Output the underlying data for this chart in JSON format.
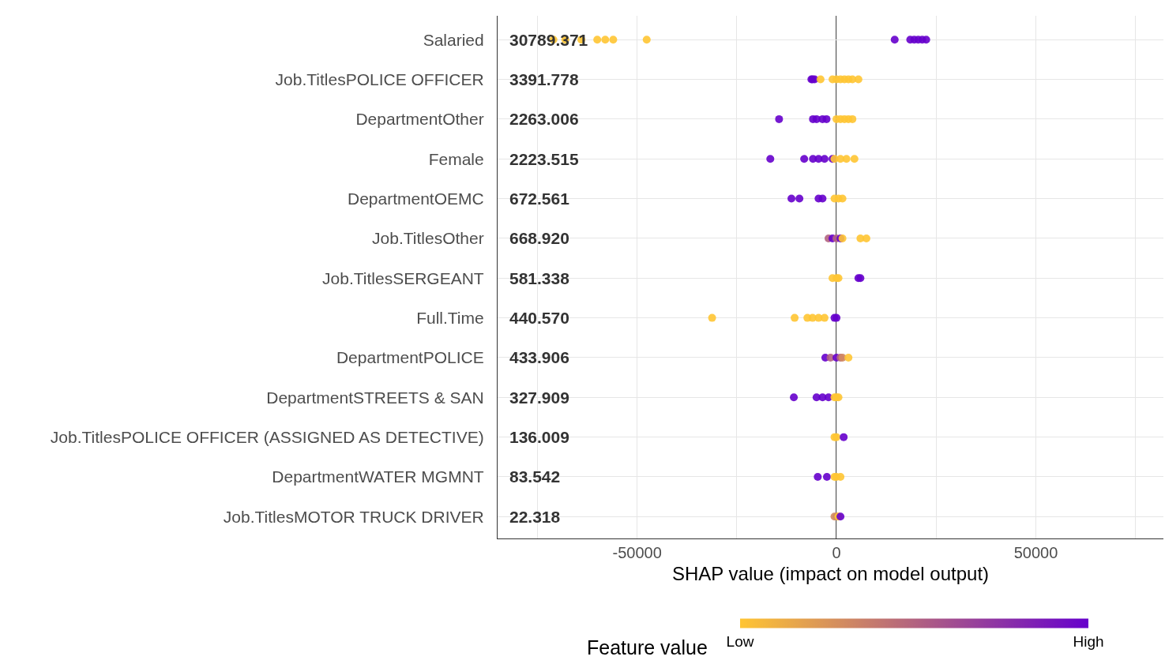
{
  "chart_data": {
    "type": "scatter",
    "orientation": "horizontal",
    "categories": [
      "Salaried",
      "Job.TitlesPOLICE OFFICER",
      "DepartmentOther",
      "Female",
      "DepartmentOEMC",
      "Job.TitlesOther",
      "Job.TitlesSERGEANT",
      "Full.Time",
      "DepartmentPOLICE",
      "DepartmentSTREETS & SAN",
      "Job.TitlesPOLICE OFFICER (ASSIGNED AS DETECTIVE)",
      "DepartmentWATER MGMNT",
      "Job.TitlesMOTOR TRUCK DRIVER"
    ],
    "series": [
      {
        "x": [
          "Salaried",
          "Salaried",
          "Salaried",
          "Salaried",
          "Salaried",
          "Salaried",
          "Salaried",
          "Salaried",
          "Salaried",
          "Salaried",
          "Salaried",
          "Salaried",
          "Salaried",
          "Job.TitlesPOLICE OFFICER",
          "Job.TitlesPOLICE OFFICER",
          "Job.TitlesPOLICE OFFICER",
          "Job.TitlesPOLICE OFFICER",
          "Job.TitlesPOLICE OFFICER",
          "Job.TitlesPOLICE OFFICER",
          "Job.TitlesPOLICE OFFICER",
          "Job.TitlesPOLICE OFFICER",
          "Job.TitlesPOLICE OFFICER",
          "Job.TitlesPOLICE OFFICER",
          "Job.TitlesPOLICE OFFICER",
          "DepartmentOther",
          "DepartmentOther",
          "DepartmentOther",
          "DepartmentOther",
          "DepartmentOther",
          "DepartmentOther",
          "DepartmentOther",
          "DepartmentOther",
          "DepartmentOther",
          "DepartmentOther",
          "Female",
          "Female",
          "Female",
          "Female",
          "Female",
          "Female",
          "Female",
          "Female",
          "Female",
          "Female",
          "DepartmentOEMC",
          "DepartmentOEMC",
          "DepartmentOEMC",
          "DepartmentOEMC",
          "DepartmentOEMC",
          "DepartmentOEMC",
          "DepartmentOEMC",
          "Job.TitlesOther",
          "Job.TitlesOther",
          "Job.TitlesOther",
          "Job.TitlesOther",
          "Job.TitlesOther",
          "Job.TitlesOther",
          "Job.TitlesOther",
          "Job.TitlesSERGEANT",
          "Job.TitlesSERGEANT",
          "Job.TitlesSERGEANT",
          "Job.TitlesSERGEANT",
          "Job.TitlesSERGEANT",
          "Full.Time",
          "Full.Time",
          "Full.Time",
          "Full.Time",
          "Full.Time",
          "Full.Time",
          "Full.Time",
          "Full.Time",
          "DepartmentPOLICE",
          "DepartmentPOLICE",
          "DepartmentPOLICE",
          "DepartmentPOLICE",
          "DepartmentPOLICE",
          "DepartmentPOLICE",
          "DepartmentSTREETS & SAN",
          "DepartmentSTREETS & SAN",
          "DepartmentSTREETS & SAN",
          "DepartmentSTREETS & SAN",
          "DepartmentSTREETS & SAN",
          "DepartmentSTREETS & SAN",
          "DepartmentSTREETS & SAN",
          "Job.TitlesPOLICE OFFICER (ASSIGNED AS DETECTIVE)",
          "Job.TitlesPOLICE OFFICER (ASSIGNED AS DETECTIVE)",
          "Job.TitlesPOLICE OFFICER (ASSIGNED AS DETECTIVE)",
          "DepartmentWATER MGMNT",
          "DepartmentWATER MGMNT",
          "DepartmentWATER MGMNT",
          "DepartmentWATER MGMNT",
          "DepartmentWATER MGMNT",
          "Job.TitlesMOTOR TRUCK DRIVER",
          "Job.TitlesMOTOR TRUCK DRIVER",
          "Job.TitlesMOTOR TRUCK DRIVER",
          "Job.TitlesMOTOR TRUCK DRIVER"
        ],
        "values": [
          -71000,
          -68000,
          -64000,
          -60000,
          -58000,
          -56000,
          -47600,
          14600,
          18500,
          19500,
          20500,
          21500,
          22500,
          -6300,
          -6000,
          -5500,
          -4000,
          -1000,
          0,
          1000,
          2000,
          3000,
          4000,
          5500,
          -14400,
          -5900,
          -5000,
          -3500,
          -2500,
          0,
          1000,
          2000,
          3000,
          4000,
          -16600,
          -8100,
          -5900,
          -4500,
          -3000,
          -1000,
          -500,
          1000,
          2500,
          4500,
          -11300,
          -9300,
          -4500,
          -3500,
          -500,
          500,
          1500,
          -2000,
          -1000,
          0,
          1000,
          1500,
          6000,
          7500,
          -1000,
          0,
          500,
          5500,
          6000,
          -31200,
          -10500,
          -7300,
          -6000,
          -4500,
          -3000,
          -500,
          0,
          -2800,
          -1500,
          0,
          1000,
          1500,
          3000,
          -10700,
          -5000,
          -3500,
          -2000,
          -500,
          0,
          500,
          -500,
          0,
          1800,
          -4700,
          -2400,
          -500,
          0,
          1000,
          -500,
          0,
          500,
          1000
        ],
        "cvalues": [
          0,
          0,
          0,
          0,
          0,
          0,
          0,
          1,
          1,
          1,
          1,
          1,
          1,
          1,
          1,
          1,
          0,
          0,
          0,
          0,
          0,
          0,
          0,
          0,
          1,
          1,
          1,
          1,
          1,
          0,
          0,
          0,
          0,
          0,
          1,
          1,
          1,
          1,
          1,
          1,
          0,
          0,
          0,
          0,
          1,
          1,
          1,
          1,
          0,
          0,
          0,
          0.5,
          1,
          0.5,
          1,
          0,
          0,
          0,
          0,
          0,
          0,
          1,
          1,
          0,
          0,
          0,
          0,
          0,
          0,
          1,
          1,
          1,
          0.5,
          1,
          0.5,
          0.3,
          0,
          1,
          1,
          1,
          1,
          0,
          0,
          0,
          0,
          0,
          1,
          1,
          1,
          0,
          0,
          0,
          0.3,
          0.3,
          0,
          1
        ]
      }
    ],
    "xlabel": "SHAP value (impact on model output)",
    "xlim": [
      -85000,
      82000
    ],
    "xticks": [
      {
        "value": -75000,
        "label": null
      },
      -50000,
      {
        "value": -25000,
        "label": null
      },
      0,
      {
        "value": 25000,
        "label": null
      },
      50000,
      {
        "value": 75000,
        "label": null
      }
    ],
    "grid": true,
    "marker": "circle",
    "ref_lines": [
      {
        "axis": "x",
        "value": 0,
        "color": "#000000"
      }
    ],
    "clabel": "Feature value",
    "clim": [
      0,
      1
    ],
    "cticks": [
      {
        "value": 0,
        "label": "Low"
      },
      {
        "value": 1,
        "label": "High"
      }
    ],
    "annotations": [
      "30789.371",
      "3391.778",
      "2263.006",
      "2223.515",
      "672.561",
      "668.920",
      "581.338",
      "440.570",
      "433.906",
      "327.909",
      "136.009",
      "83.542",
      "22.318"
    ]
  }
}
